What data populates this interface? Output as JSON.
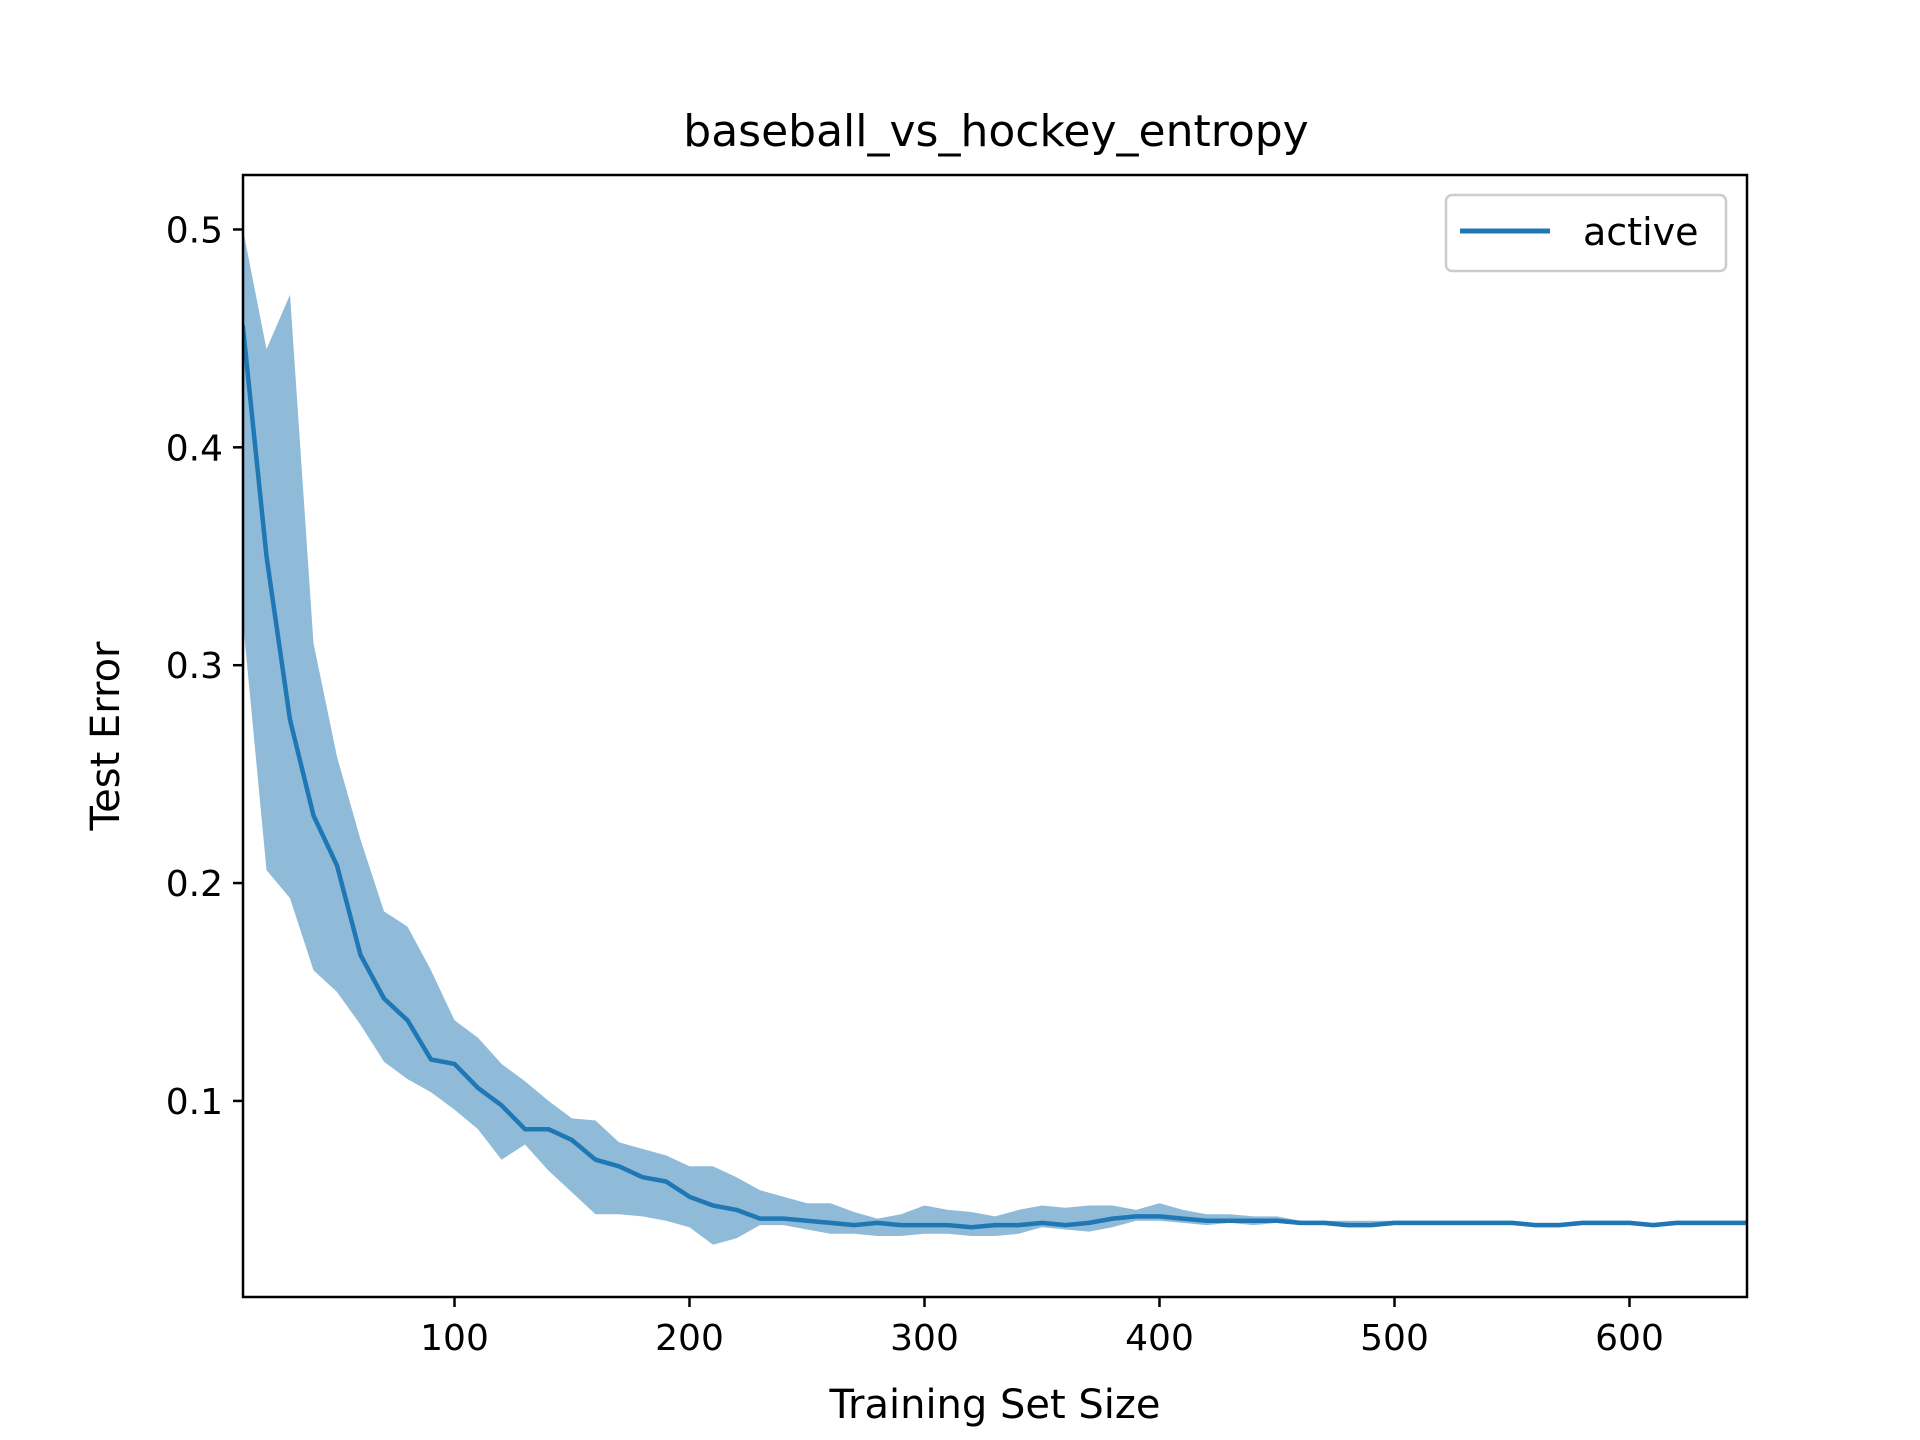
{
  "chart_data": {
    "type": "line",
    "title": "baseball_vs_hockey_entropy",
    "xlabel": "Training Set Size",
    "ylabel": "Test Error",
    "xlim": [
      10,
      650
    ],
    "ylim": [
      0.01,
      0.525
    ],
    "xticks": [
      100,
      200,
      300,
      400,
      500,
      600
    ],
    "yticks": [
      0.1,
      0.2,
      0.3,
      0.4,
      0.5
    ],
    "grid": false,
    "legend_position": "top-right",
    "series": [
      {
        "name": "active",
        "color": "#1f77b4",
        "band_color": "#1f77b4",
        "x": [
          10,
          20,
          30,
          40,
          50,
          60,
          70,
          80,
          90,
          100,
          110,
          120,
          130,
          140,
          150,
          160,
          170,
          180,
          190,
          200,
          210,
          220,
          230,
          240,
          250,
          260,
          270,
          280,
          290,
          300,
          310,
          320,
          330,
          340,
          350,
          360,
          370,
          380,
          390,
          400,
          410,
          420,
          430,
          440,
          450,
          460,
          470,
          480,
          490,
          500,
          510,
          520,
          530,
          540,
          550,
          560,
          570,
          580,
          590,
          600,
          610,
          620,
          630,
          640,
          650
        ],
        "y": [
          0.455,
          0.35,
          0.275,
          0.231,
          0.208,
          0.167,
          0.147,
          0.137,
          0.119,
          0.117,
          0.106,
          0.098,
          0.087,
          0.087,
          0.082,
          0.073,
          0.07,
          0.065,
          0.063,
          0.056,
          0.052,
          0.05,
          0.046,
          0.046,
          0.045,
          0.044,
          0.043,
          0.044,
          0.043,
          0.043,
          0.043,
          0.042,
          0.043,
          0.043,
          0.044,
          0.043,
          0.044,
          0.046,
          0.047,
          0.047,
          0.046,
          0.045,
          0.045,
          0.045,
          0.045,
          0.044,
          0.044,
          0.043,
          0.043,
          0.044,
          0.044,
          0.044,
          0.044,
          0.044,
          0.044,
          0.043,
          0.043,
          0.044,
          0.044,
          0.044,
          0.043,
          0.044,
          0.044,
          0.044,
          0.044
        ],
        "upper": [
          0.5,
          0.445,
          0.47,
          0.31,
          0.258,
          0.22,
          0.187,
          0.18,
          0.16,
          0.137,
          0.129,
          0.117,
          0.109,
          0.1,
          0.092,
          0.091,
          0.081,
          0.078,
          0.075,
          0.07,
          0.07,
          0.065,
          0.059,
          0.056,
          0.053,
          0.053,
          0.049,
          0.046,
          0.048,
          0.052,
          0.05,
          0.049,
          0.047,
          0.05,
          0.052,
          0.051,
          0.052,
          0.052,
          0.05,
          0.053,
          0.05,
          0.048,
          0.048,
          0.047,
          0.047,
          0.045,
          0.045,
          0.045,
          0.045,
          0.045,
          0.045,
          0.045,
          0.045,
          0.045,
          0.045,
          0.044,
          0.044,
          0.045,
          0.045,
          0.045,
          0.044,
          0.045,
          0.045,
          0.045,
          0.045
        ],
        "lower": [
          0.32,
          0.206,
          0.193,
          0.16,
          0.15,
          0.135,
          0.118,
          0.11,
          0.104,
          0.096,
          0.087,
          0.073,
          0.08,
          0.068,
          0.058,
          0.048,
          0.048,
          0.047,
          0.045,
          0.042,
          0.034,
          0.037,
          0.043,
          0.043,
          0.041,
          0.039,
          0.039,
          0.038,
          0.038,
          0.039,
          0.039,
          0.038,
          0.038,
          0.039,
          0.042,
          0.041,
          0.04,
          0.042,
          0.045,
          0.045,
          0.044,
          0.043,
          0.044,
          0.043,
          0.044,
          0.043,
          0.043,
          0.042,
          0.042,
          0.043,
          0.043,
          0.043,
          0.043,
          0.043,
          0.043,
          0.042,
          0.042,
          0.043,
          0.043,
          0.043,
          0.042,
          0.043,
          0.043,
          0.043,
          0.043
        ]
      }
    ]
  }
}
